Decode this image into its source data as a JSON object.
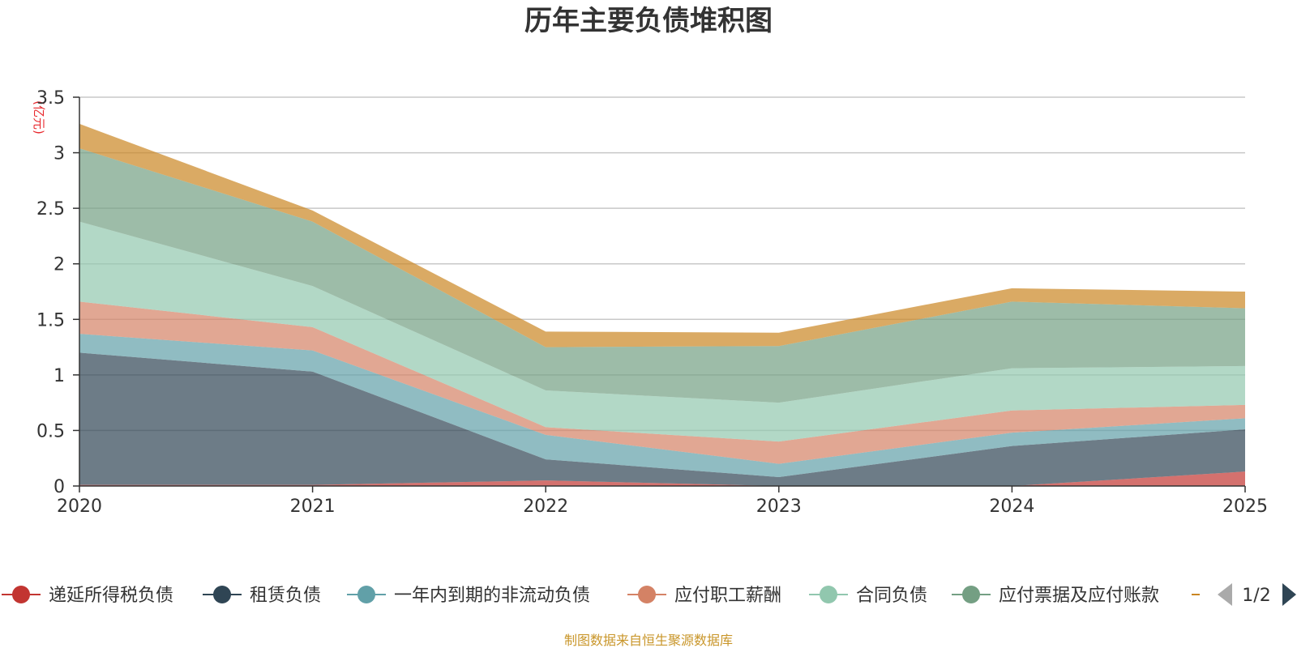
{
  "chart_data": {
    "type": "area",
    "stacked": true,
    "title": "历年主要负债堆积图",
    "unit_label": "(亿元)",
    "x": [
      "2020",
      "2021",
      "2022",
      "2023",
      "2024",
      "2025"
    ],
    "y_ticks": [
      "0",
      "0.5",
      "1",
      "1.5",
      "2",
      "2.5",
      "3",
      "3.5"
    ],
    "ylim": [
      0,
      3.5
    ],
    "grid": true,
    "legend_position": "bottom",
    "series": [
      {
        "name": "递延所得税负债",
        "color": "#c23531",
        "values": [
          0.01,
          0.01,
          0.05,
          0.0,
          0.0,
          0.13
        ]
      },
      {
        "name": "租赁负债",
        "color": "#2f4554",
        "values": [
          1.19,
          1.02,
          0.19,
          0.08,
          0.36,
          0.38
        ]
      },
      {
        "name": "一年内到期的非流动负债",
        "color": "#61a0a8",
        "values": [
          0.17,
          0.19,
          0.22,
          0.12,
          0.12,
          0.1
        ]
      },
      {
        "name": "应付职工薪酬",
        "color": "#d48265",
        "values": [
          0.29,
          0.21,
          0.07,
          0.2,
          0.2,
          0.12
        ]
      },
      {
        "name": "合同负债",
        "color": "#91c7ae",
        "values": [
          0.72,
          0.37,
          0.33,
          0.35,
          0.38,
          0.35
        ]
      },
      {
        "name": "应付票据及应付账款",
        "color": "#749f83",
        "values": [
          0.66,
          0.58,
          0.39,
          0.51,
          0.6,
          0.52
        ]
      },
      {
        "name": "",
        "color": "#ca8622",
        "values": [
          0.22,
          0.1,
          0.14,
          0.12,
          0.12,
          0.15
        ]
      }
    ]
  },
  "legend": {
    "page": "1/2",
    "prev_icon": "triangle-left-icon",
    "next_icon": "triangle-right-icon"
  },
  "source_note": "制图数据来自恒生聚源数据库"
}
